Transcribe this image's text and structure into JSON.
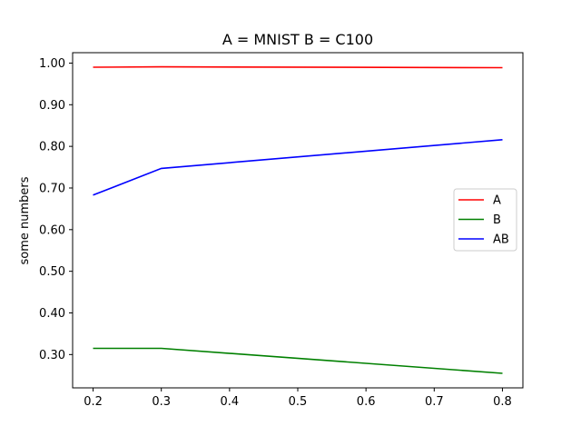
{
  "chart_data": {
    "type": "line",
    "title": "A = MNIST B = C100",
    "xlabel": "",
    "ylabel": "some numbers",
    "x": [
      0.2,
      0.3,
      0.8
    ],
    "x_ticks": [
      "0.2",
      "0.3",
      "0.4",
      "0.5",
      "0.6",
      "0.7",
      "0.8"
    ],
    "y_ticks": [
      "0.30",
      "0.40",
      "0.50",
      "0.60",
      "0.70",
      "0.80",
      "0.90",
      "1.00"
    ],
    "xlim": [
      0.17,
      0.83
    ],
    "ylim": [
      0.22,
      1.025
    ],
    "grid": false,
    "legend_position": "center-right",
    "series": [
      {
        "name": "A",
        "color": "#ff0000",
        "values": [
          0.99,
          0.991,
          0.989
        ]
      },
      {
        "name": "B",
        "color": "#008000",
        "values": [
          0.315,
          0.315,
          0.255
        ]
      },
      {
        "name": "AB",
        "color": "#0000ff",
        "values": [
          0.683,
          0.747,
          0.816
        ]
      }
    ]
  }
}
